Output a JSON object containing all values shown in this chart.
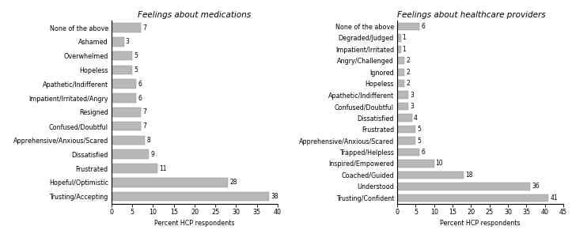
{
  "left": {
    "title": "Feelings about medications",
    "categories": [
      "None of the above",
      "Ashamed",
      "Overwhelmed",
      "Hopeless",
      "Apathetic/Indifferent",
      "Impatient/Irritated/Angry",
      "Resigned",
      "Confused/Doubtful",
      "Apprehensive/Anxious/Scared",
      "Dissatisfied",
      "Frustrated",
      "Hopeful/Optimistic",
      "Trusting/Accepting"
    ],
    "values": [
      7,
      3,
      5,
      5,
      6,
      6,
      7,
      7,
      8,
      9,
      11,
      28,
      38
    ],
    "xlim": [
      0,
      40
    ],
    "xticks": [
      0,
      5,
      10,
      15,
      20,
      25,
      30,
      35,
      40
    ],
    "xlabel": "Percent HCP respondents",
    "bar_color": "#b8b8b8",
    "title_loc": "center"
  },
  "right": {
    "title": "Feelings about healthcare providers",
    "categories": [
      "None of the above",
      "Degraded/Judged",
      "Impatient/Irritated",
      "Angry/Challenged",
      "Ignored",
      "Hopeless",
      "Apathetic/Indifferent",
      "Confused/Doubtful",
      "Dissatisfied",
      "Frustrated",
      "Apprehensive/Anxious/Scared",
      "Trapped/Helpless",
      "Inspired/Empowered",
      "Coached/Guided",
      "Understood",
      "Trusting/Confident"
    ],
    "values": [
      6,
      1,
      1,
      2,
      2,
      2,
      3,
      3,
      4,
      5,
      5,
      6,
      10,
      18,
      36,
      41
    ],
    "xlim": [
      0,
      45
    ],
    "xticks": [
      0,
      5,
      10,
      15,
      20,
      25,
      30,
      35,
      40,
      45
    ],
    "xlabel": "Percent HCP respondents",
    "bar_color": "#b8b8b8",
    "title_loc": "left"
  },
  "background_color": "#ffffff",
  "title_fontsize": 7.5,
  "label_fontsize": 5.8,
  "tick_fontsize": 5.8,
  "value_fontsize": 5.5
}
